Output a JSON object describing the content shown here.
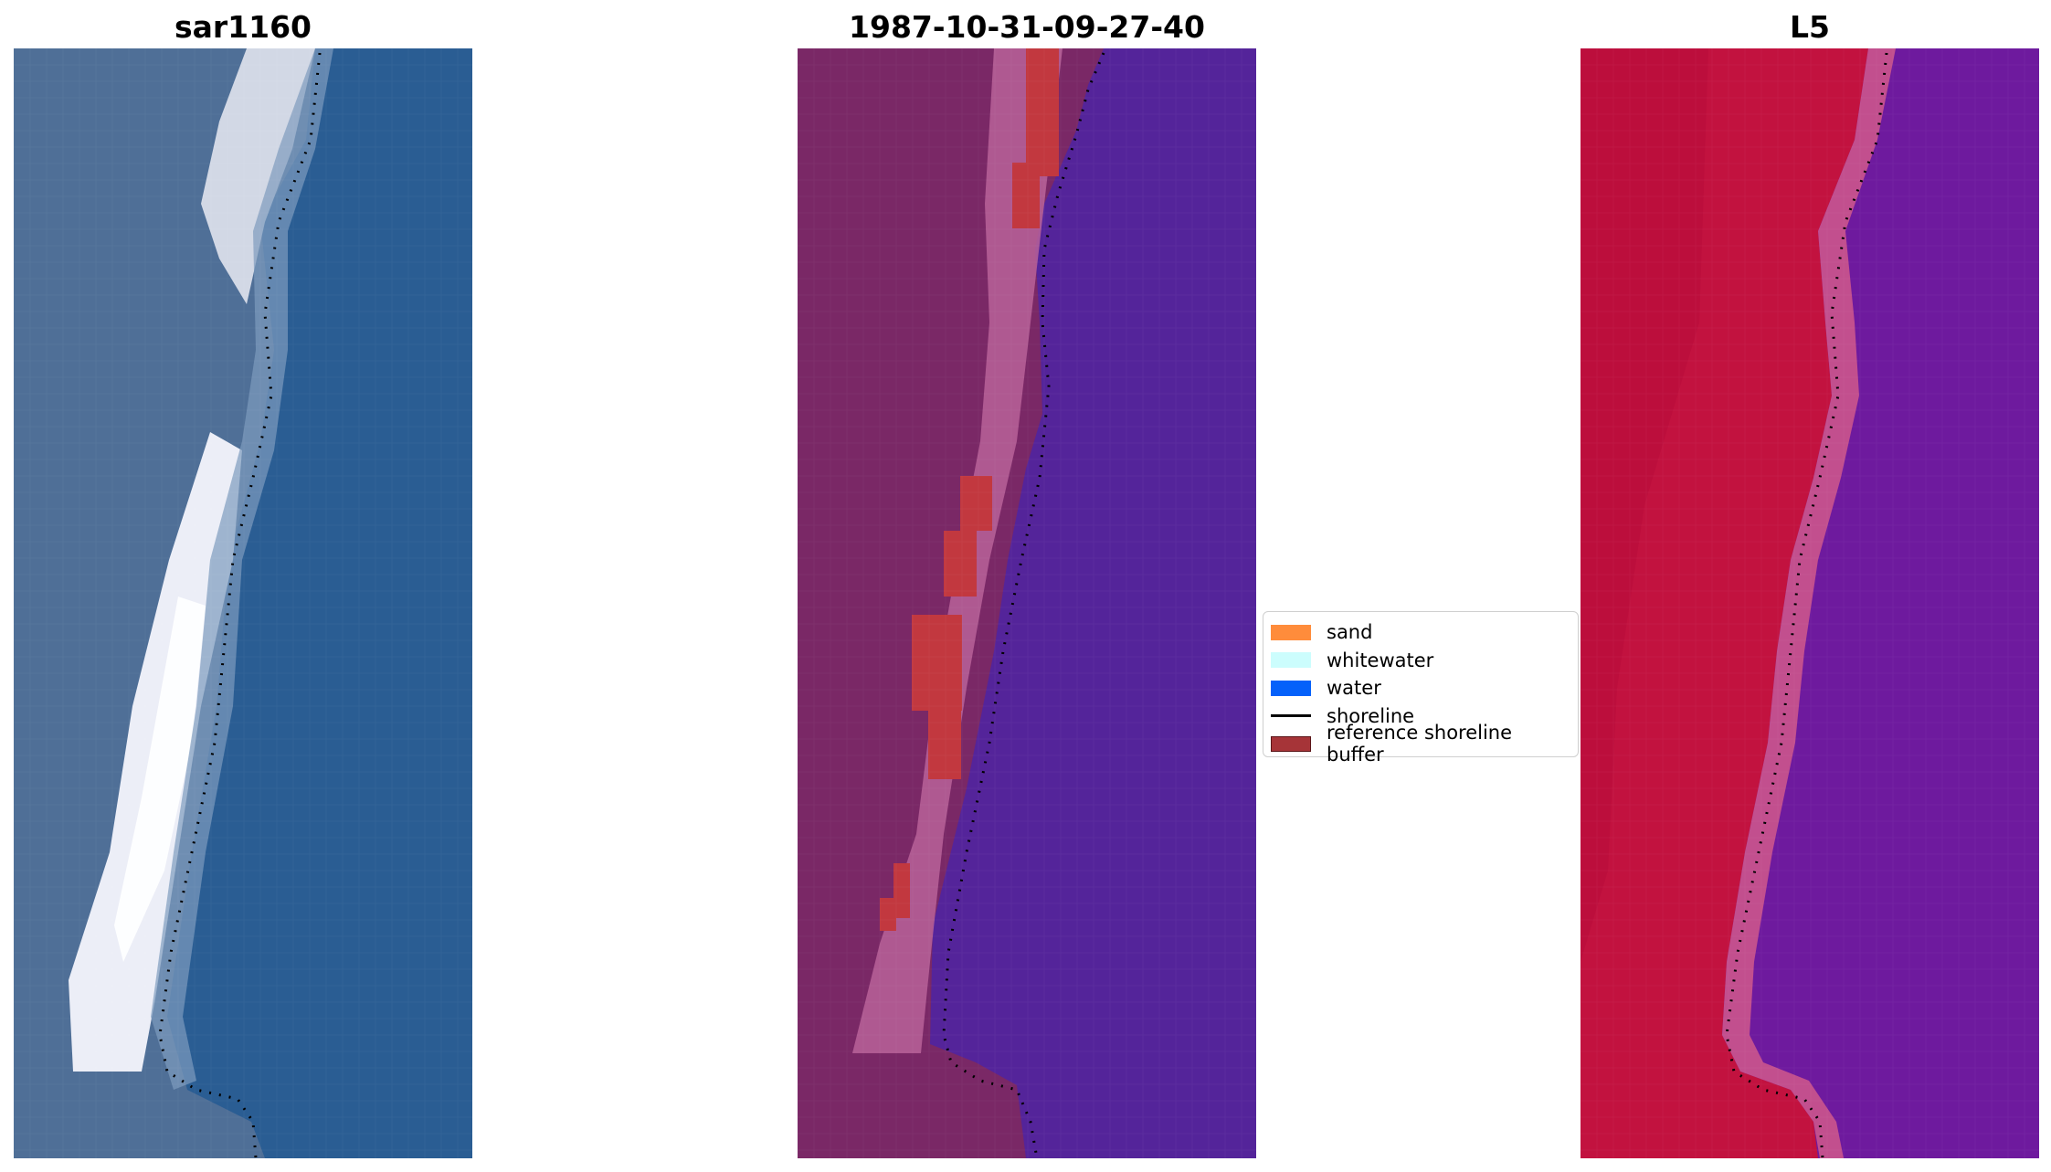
{
  "figure": {
    "panels": [
      {
        "title": "sar1160",
        "name": "satellite-rgb-panel"
      },
      {
        "title": "1987-10-31-09-27-40",
        "name": "classification-panel"
      },
      {
        "title": "L5",
        "name": "index-panel"
      }
    ]
  },
  "legend": {
    "items": [
      {
        "label": "sand",
        "color": "#ff8c3b",
        "kind": "patch"
      },
      {
        "label": "whitewater",
        "color": "#ccfdfd",
        "kind": "patch"
      },
      {
        "label": "water",
        "color": "#0561fa",
        "kind": "patch"
      },
      {
        "label": "shoreline",
        "color": "#000000",
        "kind": "line"
      },
      {
        "label": "reference shoreline buffer",
        "color": "#a63438",
        "kind": "patch",
        "edge": "#5a1518"
      }
    ]
  },
  "colors": {
    "rgb_land": "#4f6f97",
    "rgb_sand": "#e6e6f2",
    "rgb_water": "#2a5d93",
    "class_land": "#7a2866",
    "class_beach": "#b86199",
    "class_water": "#54249a",
    "class_buffer": "#c2383f",
    "index_land": "#c2123f",
    "index_water": "#6e1a9e"
  }
}
